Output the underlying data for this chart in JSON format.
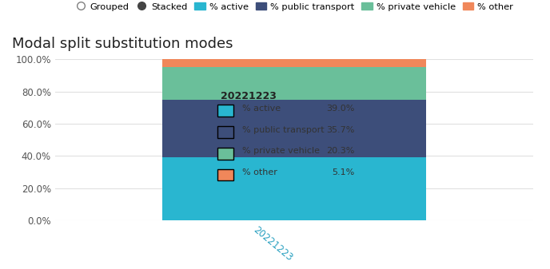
{
  "title": "Modal split substitution modes",
  "categories": [
    "20221223"
  ],
  "series": [
    {
      "name": "% active",
      "value": 39.0,
      "color": "#29b6d0"
    },
    {
      "name": "% public transport",
      "value": 35.7,
      "color": "#3d4e7a"
    },
    {
      "name": "% private vehicle",
      "value": 20.3,
      "color": "#6abf9a"
    },
    {
      "name": "% other",
      "value": 5.1,
      "color": "#f0875a"
    }
  ],
  "ylabel_ticks": [
    "0.0%",
    "20.0%",
    "40.0%",
    "60.0%",
    "80.0%",
    "100.0%"
  ],
  "ytick_values": [
    0,
    0.2,
    0.4,
    0.6,
    0.8,
    1.0
  ],
  "background_color": "#ffffff",
  "plot_bg_color": "#ffffff",
  "grid_color": "#e0e0e0",
  "title_fontsize": 13,
  "legend_grouped_label": "Grouped",
  "legend_stacked_label": "Stacked",
  "tooltip": {
    "header": "20221223",
    "entries": [
      {
        "name": "% active",
        "value": "39.0%",
        "color": "#29b6d0"
      },
      {
        "name": "% public transport",
        "value": "35.7%",
        "color": "#3d4e7a"
      },
      {
        "name": "% private vehicle",
        "value": "20.3%",
        "color": "#6abf9a"
      },
      {
        "name": "% other",
        "value": "5.1%",
        "color": "#f0875a"
      }
    ]
  },
  "xlabel_rotation": -40,
  "xlabel_color": "#29a0c0",
  "xlabel_fontsize": 8.5
}
